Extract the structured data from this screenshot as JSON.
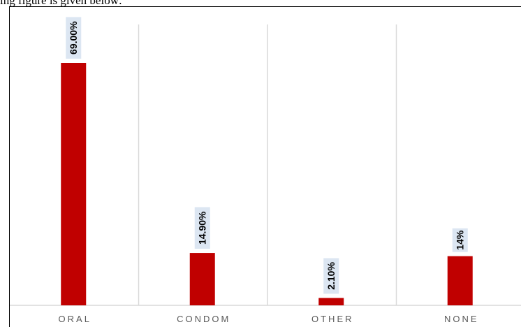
{
  "caption": "ing figure is given below:",
  "chart_data": {
    "type": "bar",
    "categories": [
      "ORAL",
      "CONDOM",
      "OTHER",
      "NONE"
    ],
    "values": [
      69.0,
      14.9,
      2.1,
      14
    ],
    "data_labels": [
      "69.00%",
      "14.90%",
      "2.10%",
      "14%"
    ],
    "title": "",
    "xlabel": "",
    "ylabel": "",
    "ylim": [
      0,
      75
    ],
    "grid": "vertical separators",
    "bar_color": "#c00000",
    "label_bg_color": "#dce6f2",
    "axis_color": "#d9d9d9"
  }
}
